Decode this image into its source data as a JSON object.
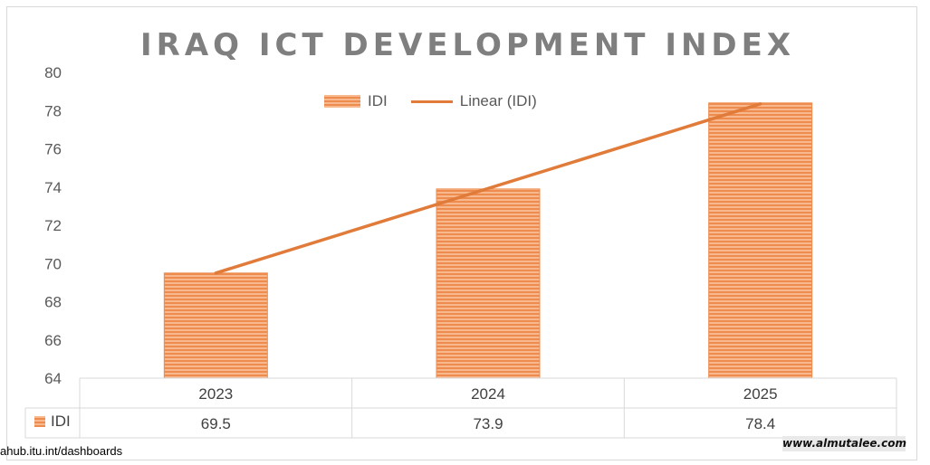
{
  "chart_data": {
    "type": "bar",
    "title": "IRAQ ICT DEVELOPMENT INDEX",
    "categories": [
      "2023",
      "2024",
      "2025"
    ],
    "series": [
      {
        "name": "IDI",
        "values": [
          69.5,
          73.9,
          78.4
        ]
      }
    ],
    "trendline": {
      "name": "Linear (IDI)",
      "type": "linear",
      "start": 69.5,
      "end": 78.35
    },
    "yticks": [
      "80",
      "78",
      "76",
      "74",
      "72",
      "70",
      "68",
      "66",
      "64"
    ],
    "ylim": [
      64,
      80
    ],
    "data_table": {
      "row_label": "IDI",
      "values": [
        "69.5",
        "73.9",
        "78.4"
      ]
    },
    "legend_position": "top",
    "grid": false,
    "colors": {
      "bar_light": "#f7b88d",
      "bar_dark": "#ed8c4e",
      "trend": "#e07b3a",
      "axis": "#d9d9d9",
      "text": "#595959"
    }
  },
  "source_text": "ahub.itu.int/dashboards",
  "watermark_text": "www.almutalee.com"
}
